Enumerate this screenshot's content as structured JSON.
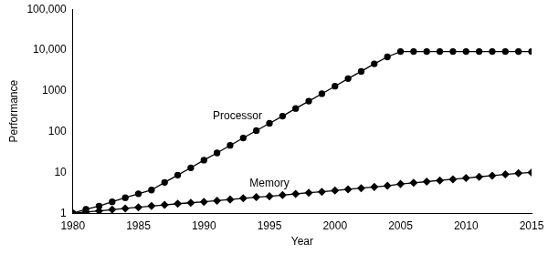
{
  "chart_data": {
    "type": "line",
    "x_label": "Year",
    "y_label": "Performance",
    "log": "y",
    "grid": false,
    "x": [
      1980,
      1981,
      1982,
      1983,
      1984,
      1985,
      1986,
      1987,
      1988,
      1989,
      1990,
      1991,
      1992,
      1993,
      1994,
      1995,
      1996,
      1997,
      1998,
      1999,
      2000,
      2001,
      2002,
      2003,
      2004,
      2005,
      2006,
      2007,
      2008,
      2009,
      2010,
      2011,
      2012,
      2013,
      2014,
      2015
    ],
    "series": [
      {
        "name": "Processor",
        "color": "#000000",
        "marker": "circle",
        "line_style": "solid",
        "values": [
          1,
          1.25,
          1.5,
          1.9,
          2.4,
          3.0,
          3.7,
          5.7,
          8.6,
          13,
          20,
          30,
          46,
          70,
          106,
          160,
          240,
          370,
          560,
          850,
          1300,
          2000,
          3000,
          4600,
          6800,
          9200,
          9200,
          9200,
          9200,
          9200,
          9200,
          9200,
          9200,
          9200,
          9200,
          9200
        ]
      },
      {
        "name": "Memory",
        "color": "#000000",
        "marker": "diamond",
        "line_style": "solid",
        "values": [
          1.0,
          1.07,
          1.14,
          1.22,
          1.31,
          1.4,
          1.5,
          1.6,
          1.71,
          1.8,
          1.9,
          2.03,
          2.17,
          2.32,
          2.48,
          2.6,
          2.78,
          2.97,
          3.18,
          3.35,
          3.6,
          3.85,
          4.12,
          4.4,
          4.7,
          5.2,
          5.56,
          5.95,
          6.37,
          6.8,
          7.3,
          7.8,
          8.35,
          8.93,
          9.55,
          10.0
        ]
      }
    ],
    "xlim": [
      1980,
      2015
    ],
    "xticks": [
      1980,
      1985,
      1990,
      1995,
      2000,
      2005,
      2010,
      2015
    ],
    "ylim": [
      1,
      100000
    ],
    "yticks": [
      1,
      10,
      100,
      1000,
      {
        "value": 10000,
        "label": "10,000"
      },
      {
        "value": 100000,
        "label": "100,000"
      }
    ]
  }
}
